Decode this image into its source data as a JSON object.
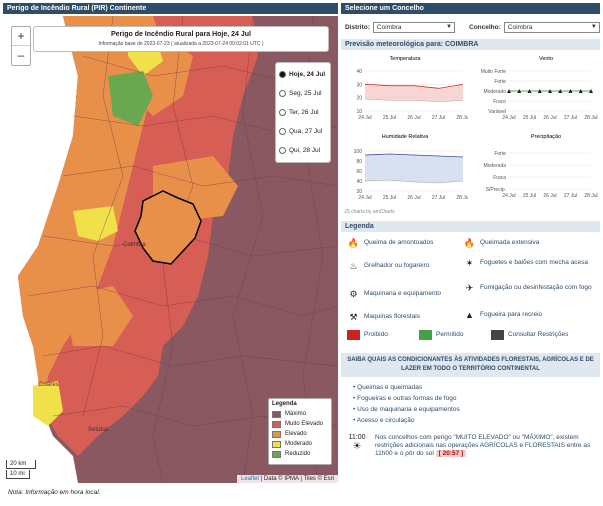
{
  "left_header": "Perigo de Incêndio Rural (PIR) Continente",
  "right_header": "Selecione um Concelho",
  "map": {
    "zoom_in": "+",
    "zoom_out": "–",
    "title": "Perigo de Incêndio Rural para Hoje, 24 Jul",
    "subtitle": "Informação base de 2023-07-23 ( atualizada a 2023-07-24 00:02:01 UTC )",
    "days": [
      {
        "label": "Hoje, 24 Jul",
        "selected": true
      },
      {
        "label": "Seg, 25 Jul",
        "selected": false
      },
      {
        "label": "Ter, 26 Jul",
        "selected": false
      },
      {
        "label": "Qua, 27 Jul",
        "selected": false
      },
      {
        "label": "Qui, 28 Jul",
        "selected": false
      }
    ],
    "legend_title": "Legenda",
    "legend": [
      {
        "label": "Máximo",
        "color": "#8a5860"
      },
      {
        "label": "Muito Elevado",
        "color": "#d65e55"
      },
      {
        "label": "Elevado",
        "color": "#e8904a"
      },
      {
        "label": "Moderado",
        "color": "#f0e04a"
      },
      {
        "label": "Reduzido",
        "color": "#6aa84f"
      }
    ],
    "scale_km": "20 km",
    "scale_mi": "10 mi",
    "attrib_leaflet": "Leaflet",
    "attrib_rest": "| Data © IPMA | Tiles © Esri"
  },
  "note": "Nota: Informação em hora local.",
  "district_label": "Distrito:",
  "district_value": "Coimbra",
  "concelho_label": "Concelho:",
  "concelho_value": "Coimbra",
  "forecast_title": "Previsão meteorológica para: COIMBRA",
  "charts": {
    "temperatura": "Temperatura",
    "vento": "Vento",
    "humidade": "Humidade Relativa",
    "precipitacao": "Precipitação",
    "dates": [
      "24 Jul",
      "25 Jul",
      "26 Jul",
      "27 Jul",
      "28 Jul"
    ],
    "temp_yticks": [
      "40",
      "30",
      "20",
      "10"
    ],
    "hum_yticks": [
      "100",
      "80",
      "60",
      "40",
      "20"
    ],
    "wind_labels": [
      "Muito Forte",
      "Forte",
      "Moderado",
      "Fraco",
      "Variável"
    ],
    "prec_labels": [
      "Forte",
      "Moderada",
      "Fraca",
      "S/Precip."
    ],
    "credit": "JS charts by amCharts"
  },
  "chart_data": [
    {
      "type": "area",
      "title": "Temperatura",
      "categories": [
        "24 Jul",
        "25 Jul",
        "26 Jul",
        "27 Jul",
        "28 Jul"
      ],
      "series": [
        {
          "values": [
            30,
            29,
            29,
            27,
            30
          ]
        },
        {
          "values": [
            19,
            18,
            18,
            17,
            18
          ]
        }
      ],
      "ylim": [
        10,
        40
      ]
    },
    {
      "type": "area",
      "title": "Humidade Relativa",
      "categories": [
        "24 Jul",
        "25 Jul",
        "26 Jul",
        "27 Jul",
        "28 Jul"
      ],
      "series": [
        {
          "values": [
            92,
            94,
            92,
            90,
            88
          ]
        },
        {
          "values": [
            40,
            42,
            38,
            36,
            40
          ]
        }
      ],
      "ylim": [
        20,
        100
      ]
    }
  ],
  "legend_section": "Legenda",
  "activities": [
    {
      "icon": "🔥",
      "label": "Queima de amontoados"
    },
    {
      "icon": "🔥",
      "label": "Queimada extensiva"
    },
    {
      "icon": "♨",
      "label": "Grelhador ou fogareiro"
    },
    {
      "icon": "✶",
      "label": "Foguetes e balões com mecha acesa"
    },
    {
      "icon": "⚙",
      "label": "Maquinaria e equipamento"
    },
    {
      "icon": "✈",
      "label": "Fumigação ou desinfestação com fogo"
    },
    {
      "icon": "⚒",
      "label": "Maquinas florestais"
    },
    {
      "icon": "▲",
      "label": "Fogueira para recreio"
    }
  ],
  "statuses": [
    {
      "label": "Proibido",
      "color": "#cc2222"
    },
    {
      "label": "Permitido",
      "color": "#44a044"
    },
    {
      "label": "Consultar Restrições",
      "color": "#444444"
    }
  ],
  "saiba": "SAIBA QUAIS AS CONDICIONANTES ÀS ATIVIDADES FLORESTAIS, AGRÍCOLAS E DE LAZER EM TODO O TERRITÓRIO CONTINENTAL",
  "bullets": [
    "Queimas e queimadas",
    "Fogueiras e outras formas de fogo",
    "Uso de maquinaria e equipamentos",
    "Acesso e circulação"
  ],
  "clock_time": "11:00",
  "restriction_text": "Nos concelhos com perigo \"MUITO ELEVADO\" ou \"MÁXIMO\", existem restrições adicionais nas operações AGRÍCOLAS e FLORESTAIS entre as 11h00 e o pôr do sol",
  "sunset": "[ 20:57 ]",
  "map_labels": {
    "coimbra": "Coimbra",
    "colares": "Colares",
    "setubal": "Setúbal"
  }
}
